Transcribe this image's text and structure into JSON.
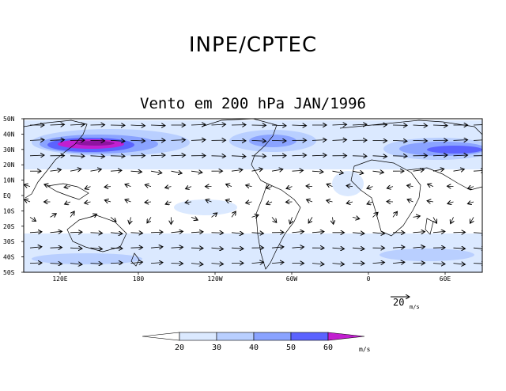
{
  "header": {
    "title": "INPE/CPTEC"
  },
  "map": {
    "title": "Vento em 200 hPa JAN/1996",
    "lat_labels": [
      "50N",
      "40N",
      "30N",
      "20N",
      "10N",
      "EQ",
      "10S",
      "20S",
      "30S",
      "40S",
      "50S"
    ],
    "lon_labels": [
      "120E",
      "180",
      "120W",
      "60W",
      "0",
      "60E"
    ],
    "reference_vector": {
      "value": "20",
      "unit": "m/s"
    }
  },
  "colorbar": {
    "unit": "m/s",
    "ticks": [
      "20",
      "30",
      "40",
      "50",
      "60"
    ],
    "colors": [
      "#ffffff",
      "#dbe9ff",
      "#b9cfff",
      "#8aa3ff",
      "#5b63ff",
      "#c21fd0"
    ]
  }
}
